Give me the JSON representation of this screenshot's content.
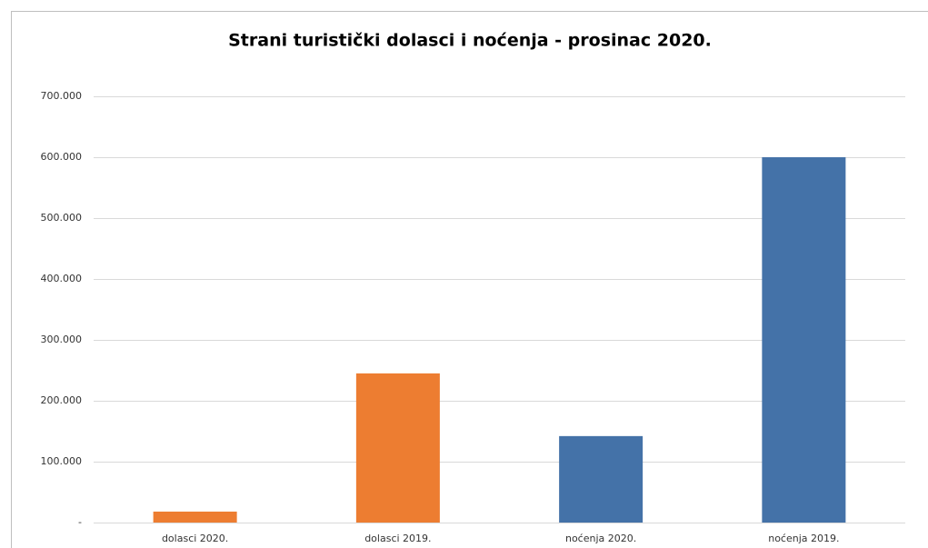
{
  "chart_data": {
    "type": "bar",
    "title": "Strani turistički dolasci i noćenja - prosinac 2020.",
    "categories": [
      "dolasci 2020.",
      "dolasci 2019.",
      "noćenja 2020.",
      "noćenja 2019."
    ],
    "values": [
      18000,
      245000,
      142000,
      600000
    ],
    "colors": [
      "#ed7d31",
      "#ed7d31",
      "#4472a8",
      "#4472a8"
    ],
    "ylim": [
      0,
      700000
    ],
    "yticks": [
      {
        "value": 0,
        "label": "-"
      },
      {
        "value": 100000,
        "label": "100.000"
      },
      {
        "value": 200000,
        "label": "200.000"
      },
      {
        "value": 300000,
        "label": "300.000"
      },
      {
        "value": 400000,
        "label": "400.000"
      },
      {
        "value": 500000,
        "label": "500.000"
      },
      {
        "value": 600000,
        "label": "600.000"
      },
      {
        "value": 700000,
        "label": "700.000"
      }
    ],
    "grid": true
  }
}
